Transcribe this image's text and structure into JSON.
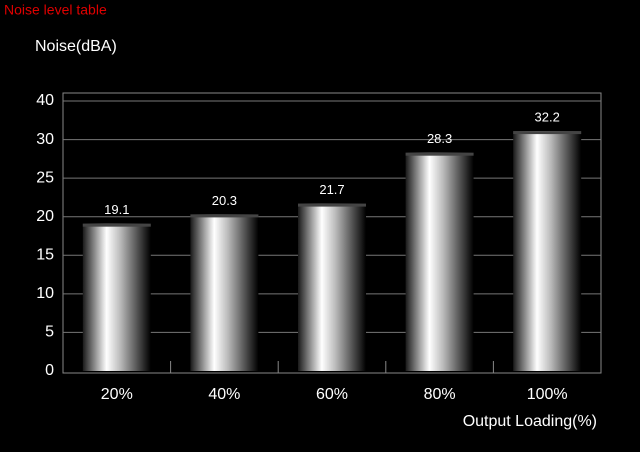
{
  "chart_data": {
    "type": "bar",
    "title": "Noise level table",
    "y_label": "Noise(dBA)",
    "x_label": "Output Loading(%)",
    "categories": [
      "20%",
      "40%",
      "60%",
      "80%",
      "100%"
    ],
    "values": [
      19.1,
      20.3,
      21.7,
      28.3,
      32.2
    ],
    "ylim": [
      0,
      40
    ],
    "yticks": [
      0,
      5,
      10,
      15,
      20,
      25,
      30,
      40
    ],
    "grid": true
  }
}
